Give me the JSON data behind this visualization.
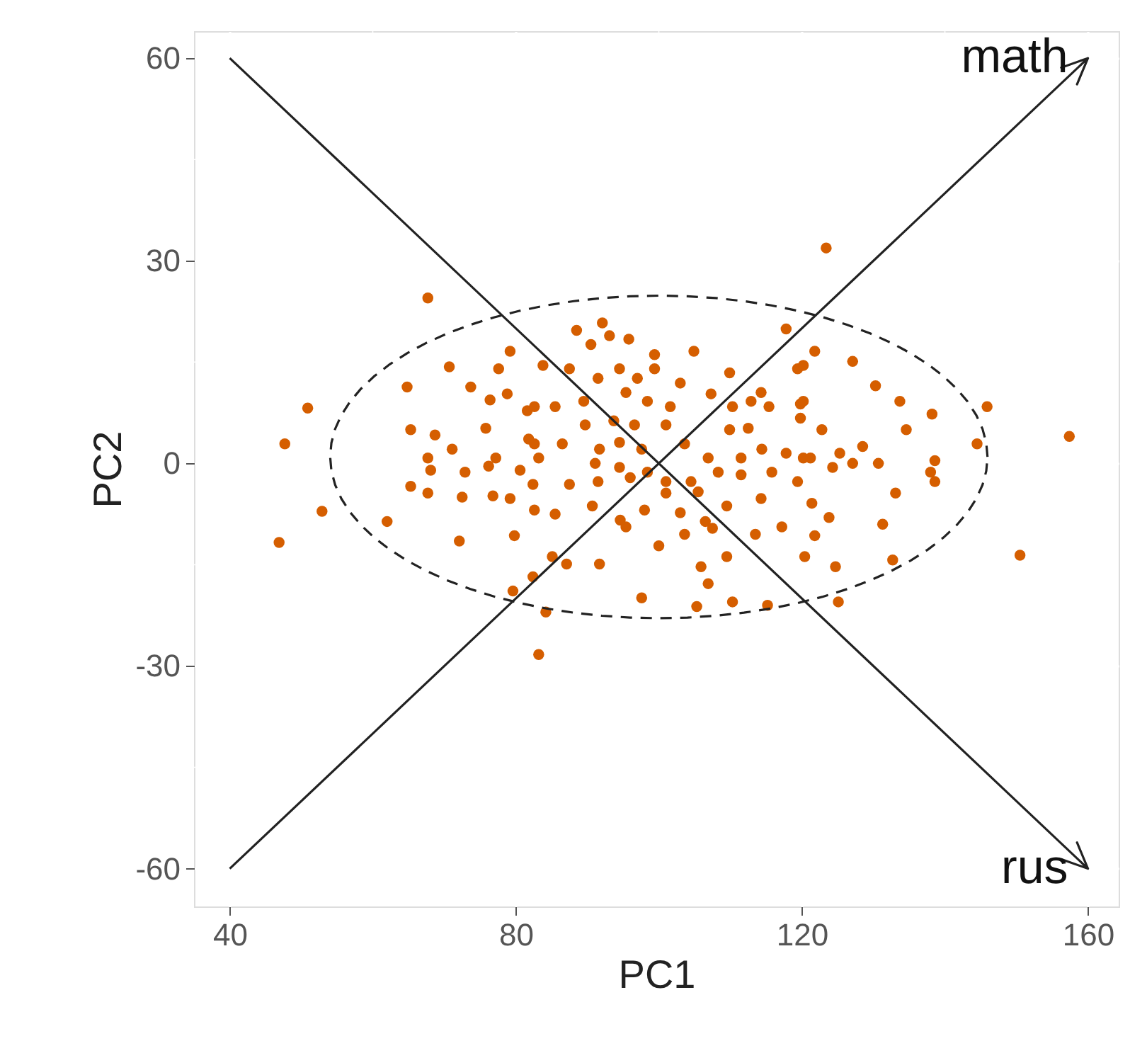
{
  "chart_data": {
    "type": "scatter",
    "xlabel": "PC1",
    "ylabel": "PC2",
    "xlim": [
      35,
      164.3
    ],
    "ylim": [
      -65.6,
      64
    ],
    "xticks": [
      40,
      80,
      120,
      160
    ],
    "yticks": [
      -60,
      -30,
      0,
      30,
      60
    ],
    "grid": true,
    "annotations": [
      "math",
      "rus"
    ],
    "series": [
      {
        "marker": "circle",
        "color": "#d55e00",
        "x": [
          67.7,
          50.9,
          47.7,
          52.9,
          46.9,
          62.0,
          64.8,
          65.3,
          68.7,
          70.7,
          73.7,
          76.4,
          77.6,
          79.2,
          78.8,
          75.8,
          67.7,
          68.1,
          71.1,
          72.9,
          76.2,
          77.2,
          80.6,
          65.3,
          67.7,
          72.5,
          76.8,
          79.2,
          82.4,
          82.6,
          79.8,
          72.1,
          79.6,
          82.4,
          81.6,
          81.8,
          88.5,
          92.1,
          93.1,
          90.5,
          95.8,
          99.4,
          104.9,
          83.8,
          87.5,
          91.5,
          94.5,
          97.0,
          99.4,
          103.0,
          109.9,
          114.3,
          117.8,
          119.4,
          82.6,
          85.5,
          89.5,
          95.4,
          98.4,
          101.6,
          107.3,
          110.3,
          112.9,
          115.4,
          119.8,
          89.7,
          93.7,
          96.6,
          101.0,
          109.9,
          112.5,
          82.6,
          86.5,
          91.7,
          94.5,
          97.6,
          103.6,
          106.9,
          111.5,
          114.4,
          117.8,
          120.2,
          83.2,
          91.1,
          94.5,
          98.4,
          101.0,
          104.5,
          108.3,
          111.5,
          115.8,
          119.4,
          87.5,
          91.5,
          96.0,
          101.0,
          105.5,
          114.3,
          85.5,
          90.7,
          98.0,
          103.0,
          106.5,
          109.5,
          94.6,
          95.4,
          103.6,
          107.5,
          113.5,
          117.2,
          100.0,
          109.5,
          91.7,
          87.1,
          85.1,
          105.9,
          106.9,
          97.6,
          105.3,
          110.3,
          115.2,
          84.2,
          83.2,
          123.4,
          121.8,
          120.2,
          127.1,
          130.3,
          133.7,
          138.2,
          145.9,
          157.4,
          134.6,
          144.5,
          120.2,
          119.8,
          122.8,
          121.2,
          125.3,
          128.5,
          127.1,
          130.7,
          124.3,
          138.6,
          138.0,
          138.6,
          133.1,
          121.4,
          123.8,
          131.3,
          121.8,
          120.4,
          124.7,
          132.7,
          150.5,
          125.1
        ],
        "values": [
          24.5,
          8.2,
          2.9,
          -7.1,
          -11.7,
          -8.6,
          11.3,
          5.0,
          4.2,
          14.3,
          11.3,
          9.4,
          14.0,
          16.6,
          10.3,
          5.2,
          0.8,
          -1.0,
          2.1,
          -1.3,
          -0.4,
          0.8,
          -1.0,
          -3.4,
          -4.4,
          -5.0,
          -4.8,
          -5.2,
          -3.1,
          -6.9,
          -10.7,
          -11.5,
          -18.9,
          -16.8,
          7.8,
          3.6,
          19.7,
          20.8,
          18.9,
          17.6,
          18.4,
          16.1,
          16.6,
          14.5,
          14.0,
          12.6,
          14.0,
          12.6,
          14.0,
          11.9,
          13.4,
          10.5,
          19.9,
          14.0,
          8.4,
          8.4,
          9.2,
          10.5,
          9.2,
          8.4,
          10.3,
          8.4,
          9.2,
          8.4,
          8.8,
          5.7,
          6.3,
          5.7,
          5.7,
          5.0,
          5.2,
          2.9,
          2.9,
          2.1,
          3.1,
          2.1,
          2.9,
          0.8,
          0.8,
          2.1,
          1.5,
          0.8,
          0.8,
          0,
          -0.6,
          -1.3,
          -2.7,
          -2.7,
          -1.3,
          -1.7,
          -1.3,
          -2.7,
          -3.1,
          -2.7,
          -2.1,
          -4.4,
          -4.2,
          -5.2,
          -7.5,
          -6.3,
          -6.9,
          -7.3,
          -8.6,
          -6.3,
          -8.4,
          -9.4,
          -10.5,
          -9.6,
          -10.5,
          -9.4,
          -12.2,
          -13.8,
          -14.9,
          -14.9,
          -13.8,
          -15.3,
          -17.8,
          -19.9,
          -21.2,
          -20.5,
          -21.0,
          -22.0,
          -28.3,
          31.9,
          16.6,
          14.5,
          15.1,
          11.5,
          9.2,
          7.3,
          8.4,
          4.0,
          5.0,
          2.9,
          9.2,
          6.7,
          5.0,
          0.8,
          1.5,
          2.5,
          0,
          0,
          -0.6,
          0.4,
          -1.3,
          -2.7,
          -4.4,
          -5.9,
          -8.0,
          -9.0,
          -10.7,
          -13.8,
          -15.3,
          -14.3,
          -13.6,
          -20.5
        ]
      }
    ]
  }
}
